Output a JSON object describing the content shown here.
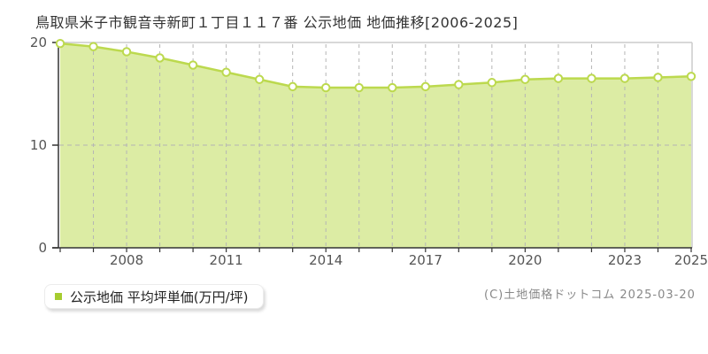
{
  "title": "鳥取県米子市観音寺新町１丁目１１７番 公示地価 地価推移[2006-2025]",
  "legend": {
    "label": "公示地価 平均坪単価(万円/坪)",
    "marker_color": "#a6cc30"
  },
  "copyright": "(C)土地価格ドットコム 2025-03-20",
  "chart_data": {
    "type": "area",
    "title": "鳥取県米子市観音寺新町１丁目１１７番 公示地価 地価推移[2006-2025]",
    "x": [
      2006,
      2007,
      2008,
      2009,
      2010,
      2011,
      2012,
      2013,
      2014,
      2015,
      2016,
      2017,
      2018,
      2019,
      2020,
      2021,
      2022,
      2023,
      2024,
      2025
    ],
    "series": [
      {
        "name": "公示地価 平均坪単価(万円/坪)",
        "values": [
          19.9,
          19.6,
          19.1,
          18.5,
          17.8,
          17.1,
          16.4,
          15.7,
          15.6,
          15.6,
          15.6,
          15.7,
          15.9,
          16.1,
          16.4,
          16.5,
          16.5,
          16.5,
          16.6,
          16.7
        ]
      }
    ],
    "xlabel": "",
    "ylabel": "",
    "ylim": [
      0,
      20
    ],
    "yticks": [
      0,
      10,
      20
    ],
    "xtick_years": [
      2008,
      2011,
      2014,
      2017,
      2020,
      2023,
      2025
    ],
    "grid": true,
    "legend_position": "bottom-left",
    "colors": {
      "area_fill": "#dcecA4",
      "line": "#bcd94e",
      "marker_fill": "#ffffff",
      "marker_stroke": "#bcd94e",
      "grid": "#b5b5b5",
      "axis": "#333333",
      "frame": "#cccccc",
      "tick_label": "#555555"
    }
  }
}
